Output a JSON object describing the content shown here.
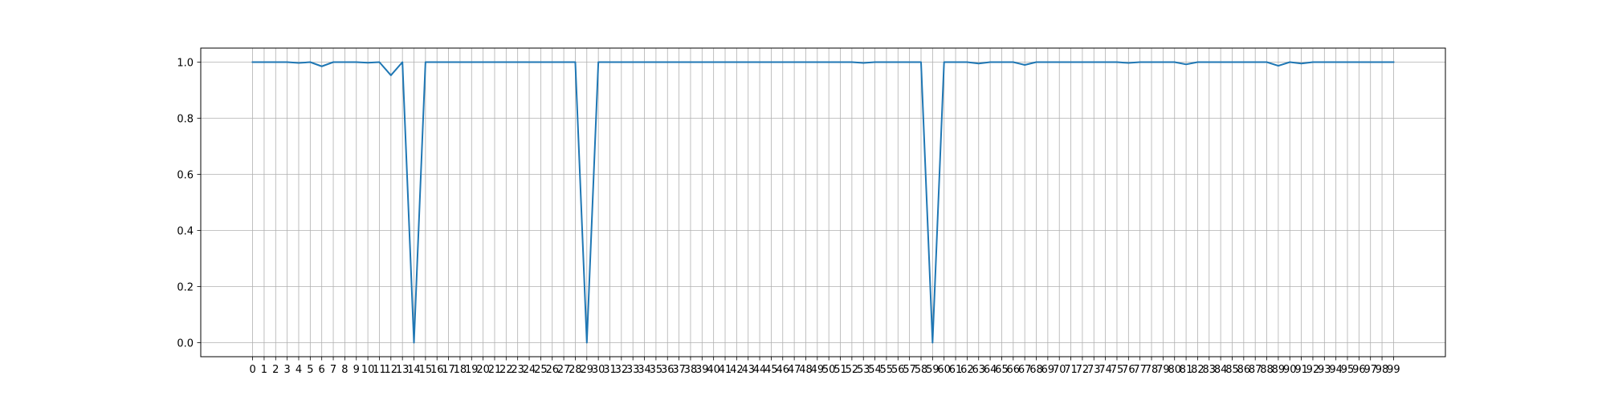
{
  "chart_data": {
    "type": "line",
    "title": "",
    "xlabel": "",
    "ylabel": "",
    "grid": true,
    "legend": "none",
    "xlim": [
      -4.5,
      103.5
    ],
    "ylim": [
      -0.05,
      1.05
    ],
    "x_ticks": [
      0,
      1,
      2,
      3,
      4,
      5,
      6,
      7,
      8,
      9,
      10,
      11,
      12,
      13,
      14,
      15,
      16,
      17,
      18,
      19,
      20,
      21,
      22,
      23,
      24,
      25,
      26,
      27,
      28,
      29,
      30,
      31,
      32,
      33,
      34,
      35,
      36,
      37,
      38,
      39,
      40,
      41,
      42,
      43,
      44,
      45,
      46,
      47,
      48,
      49,
      50,
      51,
      52,
      53,
      54,
      55,
      56,
      57,
      58,
      59,
      60,
      61,
      62,
      63,
      64,
      65,
      66,
      67,
      68,
      69,
      70,
      71,
      72,
      73,
      74,
      75,
      76,
      77,
      78,
      79,
      80,
      81,
      82,
      83,
      84,
      85,
      86,
      87,
      88,
      89,
      90,
      91,
      92,
      93,
      94,
      95,
      96,
      97,
      98,
      99
    ],
    "y_ticks": [
      0.0,
      0.2,
      0.4,
      0.6,
      0.8,
      1.0
    ],
    "y_tick_labels": [
      "0.0",
      "0.2",
      "0.4",
      "0.6",
      "0.8",
      "1.0"
    ],
    "series": [
      {
        "color": "#1f77b4",
        "x": [
          0,
          1,
          2,
          3,
          4,
          5,
          6,
          7,
          8,
          9,
          10,
          11,
          12,
          13,
          14,
          15,
          16,
          17,
          18,
          19,
          20,
          21,
          22,
          23,
          24,
          25,
          26,
          27,
          28,
          29,
          30,
          31,
          32,
          33,
          34,
          35,
          36,
          37,
          38,
          39,
          40,
          41,
          42,
          43,
          44,
          45,
          46,
          47,
          48,
          49,
          50,
          51,
          52,
          53,
          54,
          55,
          56,
          57,
          58,
          59,
          60,
          61,
          62,
          63,
          64,
          65,
          66,
          67,
          68,
          69,
          70,
          71,
          72,
          73,
          74,
          75,
          76,
          77,
          78,
          79,
          80,
          81,
          82,
          83,
          84,
          85,
          86,
          87,
          88,
          89,
          90,
          91,
          92,
          93,
          94,
          95,
          96,
          97,
          98,
          99
        ],
        "values": [
          1.0,
          1.0,
          1.0,
          1.0,
          0.997,
          1.0,
          0.985,
          1.0,
          1.0,
          1.0,
          0.998,
          1.0,
          0.953,
          1.0,
          0.0,
          1.0,
          1.0,
          1.0,
          1.0,
          1.0,
          1.0,
          1.0,
          1.0,
          1.0,
          1.0,
          1.0,
          1.0,
          1.0,
          1.0,
          0.0,
          1.0,
          1.0,
          1.0,
          1.0,
          1.0,
          1.0,
          1.0,
          1.0,
          1.0,
          1.0,
          1.0,
          1.0,
          1.0,
          1.0,
          1.0,
          1.0,
          1.0,
          1.0,
          1.0,
          1.0,
          1.0,
          1.0,
          1.0,
          0.997,
          1.0,
          1.0,
          1.0,
          1.0,
          1.0,
          0.0,
          1.0,
          1.0,
          1.0,
          0.995,
          1.0,
          1.0,
          1.0,
          0.99,
          1.0,
          1.0,
          1.0,
          1.0,
          1.0,
          1.0,
          1.0,
          1.0,
          0.997,
          1.0,
          1.0,
          1.0,
          1.0,
          0.992,
          1.0,
          1.0,
          1.0,
          1.0,
          1.0,
          1.0,
          1.0,
          0.987,
          1.0,
          0.995,
          1.0,
          1.0,
          1.0,
          1.0,
          1.0,
          1.0,
          1.0,
          1.0
        ]
      }
    ]
  }
}
